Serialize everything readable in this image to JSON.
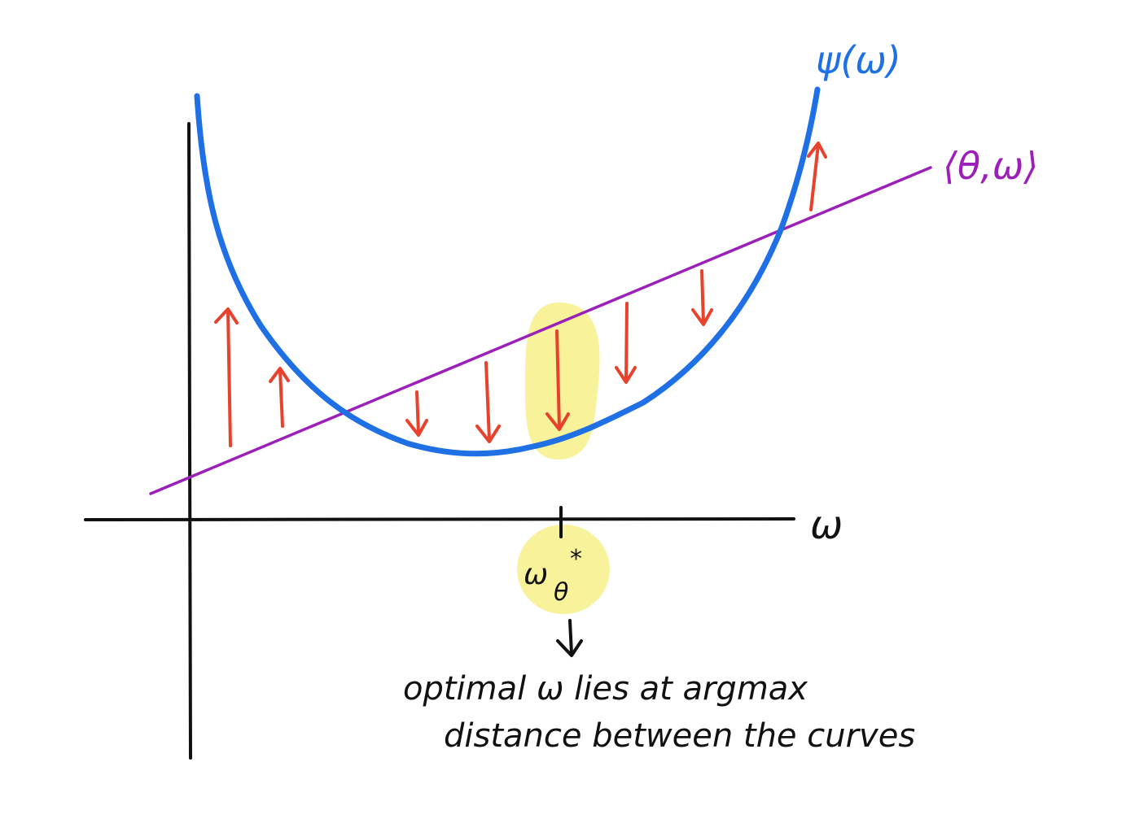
{
  "diagram": {
    "curve_label": "ψ(ω)",
    "line_label": "⟨θ,ω⟩",
    "x_axis_label": "ω",
    "optimum_label_main": "ω",
    "optimum_label_sub": "θ",
    "optimum_label_sup": "*",
    "caption_line1": "optimal ω lies at argmax",
    "caption_line2": "distance between the curves"
  },
  "colors": {
    "curve": "#1f6fe5",
    "line": "#9b1fb8",
    "arrows": "#e8412c",
    "highlight": "#f7f08a",
    "ink": "#111111"
  }
}
